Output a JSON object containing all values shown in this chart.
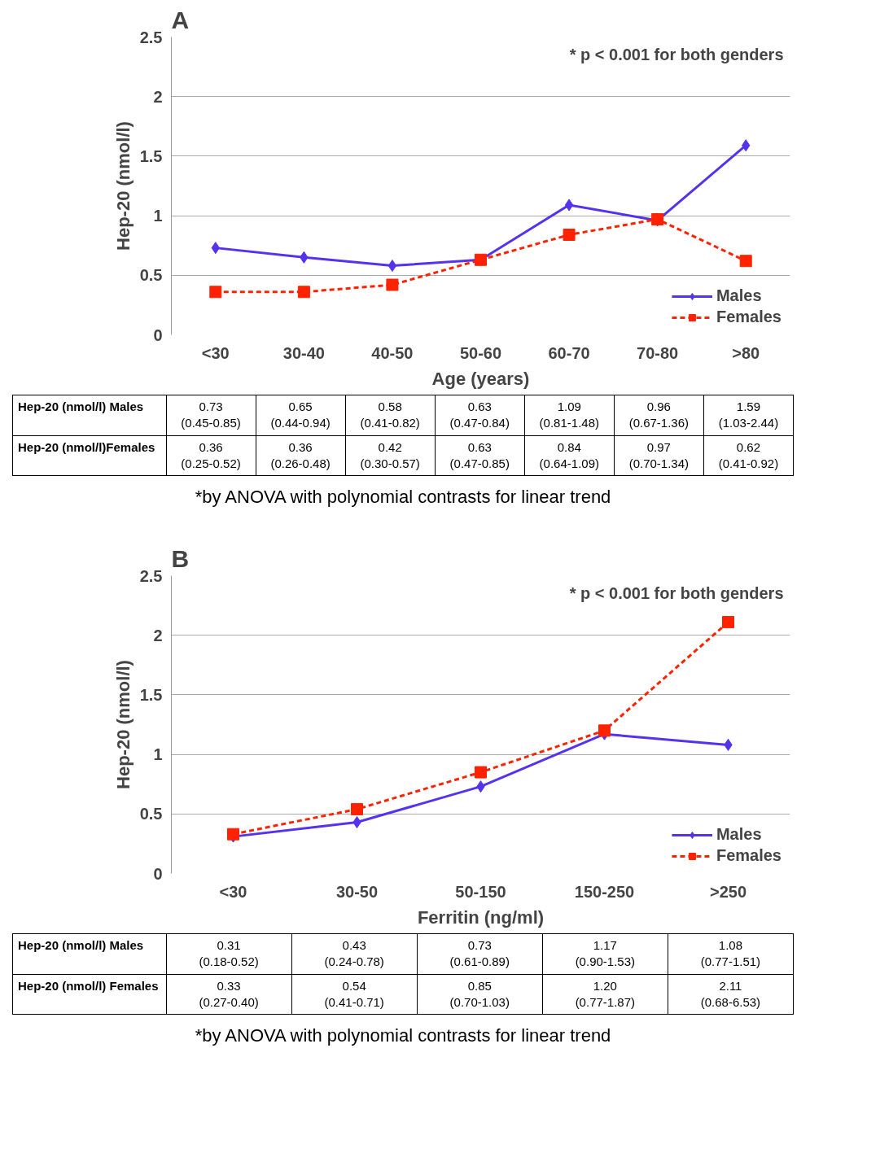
{
  "chart_data": [
    {
      "type": "line",
      "title": "A",
      "xlabel": "Age (years)",
      "ylabel": "Hep-20 (nmol/l)",
      "categories": [
        "<30",
        "30-40",
        "40-50",
        "50-60",
        "60-70",
        "70-80",
        ">80"
      ],
      "ylim": [
        0,
        2.5
      ],
      "yticks": [
        0,
        0.5,
        1,
        1.5,
        2,
        2.5
      ],
      "grid": "y",
      "legend": "bottom right",
      "series": [
        {
          "name": "Males",
          "color": "#5533ee",
          "marker": "diamond",
          "line_style": "solid",
          "values": [
            0.73,
            0.65,
            0.58,
            0.63,
            1.09,
            0.96,
            1.59
          ],
          "value_labels": [
            "0.73\n(0.45-0.85)",
            "0.65\n(0.44-0.94)",
            "0.58\n(0.41-0.82)",
            "0.63\n(0.47-0.84)",
            "1.09\n(0.81-1.48)",
            "0.96\n(0.67-1.36)",
            "1.59\n(1.03-2.44)"
          ]
        },
        {
          "name": "Females",
          "color": "#ff2200",
          "marker": "square",
          "line_style": "dashed",
          "values": [
            0.36,
            0.36,
            0.42,
            0.63,
            0.84,
            0.97,
            0.62
          ],
          "value_labels": [
            "0.36\n(0.25-0.52)",
            "0.36\n(0.26-0.48)",
            "0.42\n(0.30-0.57)",
            "0.63\n(0.47-0.85)",
            "0.84\n(0.64-1.09)",
            "0.97\n(0.70-1.34)",
            "0.62\n(0.41-0.92)"
          ]
        }
      ],
      "annotations": [
        "* p < 0.001 for both genders",
        "Hep-20 (nmol/l) Males",
        "Hep-20 (nmol/l)Females",
        "*by ANOVA with polynomial contrasts for linear trend"
      ]
    },
    {
      "type": "line",
      "title": "B",
      "xlabel": "Ferritin (ng/ml)",
      "ylabel": "Hep-20 (nmol/l)",
      "categories": [
        "<30",
        "30-50",
        "50-150",
        "150-250",
        ">250"
      ],
      "ylim": [
        0,
        2.5
      ],
      "yticks": [
        0,
        0.5,
        1,
        1.5,
        2,
        2.5
      ],
      "grid": "y",
      "legend": "bottom right",
      "series": [
        {
          "name": "Males",
          "color": "#5533ee",
          "marker": "diamond",
          "line_style": "solid",
          "values": [
            0.31,
            0.43,
            0.73,
            1.17,
            1.08
          ],
          "value_labels": [
            "0.31\n(0.18-0.52)",
            "0.43\n(0.24-0.78)",
            "0.73\n(0.61-0.89)",
            "1.17\n(0.90-1.53)",
            "1.08\n(0.77-1.51)"
          ]
        },
        {
          "name": "Females",
          "color": "#ff2200",
          "marker": "square",
          "line_style": "dashed",
          "values": [
            0.33,
            0.54,
            0.85,
            1.2,
            2.11
          ],
          "value_labels": [
            "0.33\n(0.27-0.40)",
            "0.54\n(0.41-0.71)",
            "0.85\n(0.70-1.03)",
            "1.20\n(0.77-1.87)",
            "2.11\n(0.68-6.53)"
          ]
        }
      ],
      "annotations": [
        "* p < 0.001 for both genders",
        "Hep-20 (nmol/l) Males",
        "Hep-20 (nmol/l) Females",
        "*by ANOVA with polynomial contrasts for linear trend"
      ]
    }
  ]
}
